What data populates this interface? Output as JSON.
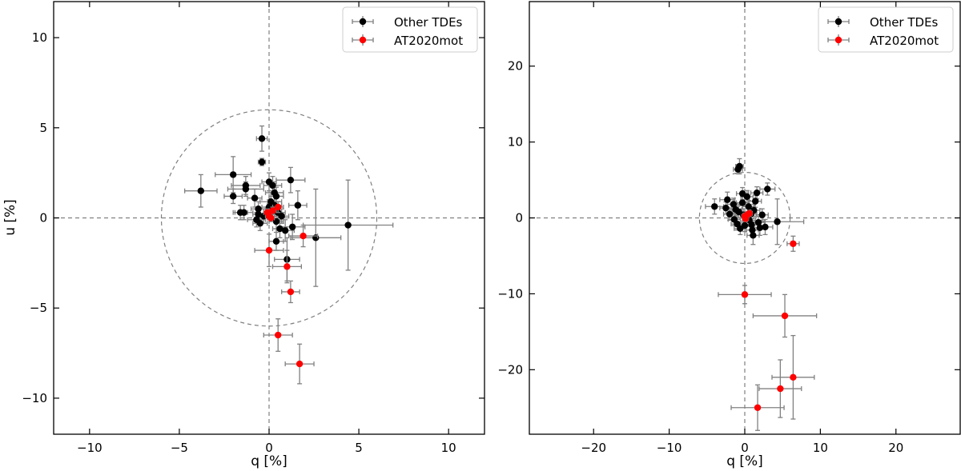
{
  "chart_data": [
    {
      "type": "scatter",
      "xlabel": "q  [%]",
      "ylabel": "u  [%]",
      "xlim": [
        -12,
        12
      ],
      "ylim": [
        -12,
        12
      ],
      "xticks": [
        -10,
        -5,
        0,
        5,
        10
      ],
      "yticks": [
        -10,
        -5,
        0,
        5,
        10
      ],
      "xtick_labels": [
        "−10",
        "−5",
        "0",
        "5",
        "10"
      ],
      "ytick_labels": [
        "−10",
        "−5",
        "0",
        "5",
        "10"
      ],
      "circle_radius": 6,
      "legend_position": "upper right",
      "series": [
        {
          "name": "Other TDEs",
          "color": "#000000",
          "points": [
            {
              "x": -0.4,
              "y": 4.4,
              "xerr": 0.3,
              "yerr": 0.7
            },
            {
              "x": -0.4,
              "y": 3.1,
              "xerr": 0.2,
              "yerr": 0.2
            },
            {
              "x": -2.0,
              "y": 2.4,
              "xerr": 1.0,
              "yerr": 1.0
            },
            {
              "x": -1.3,
              "y": 1.8,
              "xerr": 0.8,
              "yerr": 0.5
            },
            {
              "x": -1.3,
              "y": 1.6,
              "xerr": 1.0,
              "yerr": 0.4
            },
            {
              "x": -2.0,
              "y": 1.2,
              "xerr": 0.5,
              "yerr": 0.4
            },
            {
              "x": -3.8,
              "y": 1.5,
              "xerr": 0.9,
              "yerr": 0.9
            },
            {
              "x": -1.6,
              "y": 0.3,
              "xerr": 0.4,
              "yerr": 0.4
            },
            {
              "x": -1.4,
              "y": 0.3,
              "xerr": 0.5,
              "yerr": 0.4
            },
            {
              "x": -0.8,
              "y": 1.1,
              "xerr": 0.4,
              "yerr": 0.5
            },
            {
              "x": -0.6,
              "y": 0.5,
              "xerr": 0.4,
              "yerr": 0.4
            },
            {
              "x": -0.6,
              "y": 0.2,
              "xerr": 0.3,
              "yerr": 0.3
            },
            {
              "x": -0.7,
              "y": -0.1,
              "xerr": 0.5,
              "yerr": 0.4
            },
            {
              "x": -0.5,
              "y": -0.3,
              "xerr": 0.4,
              "yerr": 0.4
            },
            {
              "x": -0.3,
              "y": 0.1,
              "xerr": 0.4,
              "yerr": 0.4
            },
            {
              "x": 0.0,
              "y": 2.0,
              "xerr": 0.4,
              "yerr": 0.5
            },
            {
              "x": 0.2,
              "y": 1.8,
              "xerr": 0.5,
              "yerr": 0.5
            },
            {
              "x": 0.3,
              "y": 1.4,
              "xerr": 0.5,
              "yerr": 0.5
            },
            {
              "x": 0.4,
              "y": 1.2,
              "xerr": 0.4,
              "yerr": 0.5
            },
            {
              "x": 0.1,
              "y": 0.9,
              "xerr": 0.6,
              "yerr": 0.5
            },
            {
              "x": 0.3,
              "y": 0.7,
              "xerr": 0.4,
              "yerr": 0.5
            },
            {
              "x": 0.0,
              "y": 0.6,
              "xerr": 0.4,
              "yerr": 0.4
            },
            {
              "x": 0.2,
              "y": 0.4,
              "xerr": 0.3,
              "yerr": 0.4
            },
            {
              "x": 0.5,
              "y": 0.3,
              "xerr": 0.4,
              "yerr": 0.4
            },
            {
              "x": 0.7,
              "y": 0.1,
              "xerr": 0.4,
              "yerr": 0.4
            },
            {
              "x": 0.4,
              "y": -0.2,
              "xerr": 0.4,
              "yerr": 0.4
            },
            {
              "x": 0.6,
              "y": -0.6,
              "xerr": 0.4,
              "yerr": 0.5
            },
            {
              "x": 0.4,
              "y": -1.3,
              "xerr": 0.4,
              "yerr": 0.5
            },
            {
              "x": 0.9,
              "y": -0.7,
              "xerr": 0.5,
              "yerr": 0.6
            },
            {
              "x": 1.2,
              "y": 2.1,
              "xerr": 0.8,
              "yerr": 0.7
            },
            {
              "x": 1.6,
              "y": 0.7,
              "xerr": 0.5,
              "yerr": 0.8
            },
            {
              "x": 1.3,
              "y": -0.5,
              "xerr": 0.7,
              "yerr": 0.7
            },
            {
              "x": 1.0,
              "y": -2.3,
              "xerr": 0.7,
              "yerr": 1.2
            },
            {
              "x": 2.6,
              "y": -1.1,
              "xerr": 1.4,
              "yerr": 2.7
            },
            {
              "x": 4.4,
              "y": -0.4,
              "xerr": 2.5,
              "yerr": 2.5
            }
          ]
        },
        {
          "name": "AT2020mot",
          "color": "#ff0000",
          "points": [
            {
              "x": 0.0,
              "y": 0.1,
              "xerr": 0.2,
              "yerr": 0.2
            },
            {
              "x": -0.1,
              "y": 0.3,
              "xerr": 0.2,
              "yerr": 0.2
            },
            {
              "x": 0.1,
              "y": 0.0,
              "xerr": 0.2,
              "yerr": 0.2
            },
            {
              "x": 0.2,
              "y": 0.4,
              "xerr": 0.2,
              "yerr": 0.2
            },
            {
              "x": 0.5,
              "y": 0.6,
              "xerr": 0.3,
              "yerr": 0.3
            },
            {
              "x": 1.9,
              "y": -1.0,
              "xerr": 0.8,
              "yerr": 0.6
            },
            {
              "x": 0.0,
              "y": -1.8,
              "xerr": 0.8,
              "yerr": 0.9
            },
            {
              "x": 1.0,
              "y": -2.7,
              "xerr": 0.8,
              "yerr": 0.9
            },
            {
              "x": 1.2,
              "y": -4.1,
              "xerr": 0.5,
              "yerr": 0.6
            },
            {
              "x": 0.5,
              "y": -6.5,
              "xerr": 0.8,
              "yerr": 0.9
            },
            {
              "x": 1.7,
              "y": -8.1,
              "xerr": 0.8,
              "yerr": 1.1
            }
          ]
        }
      ]
    },
    {
      "type": "scatter",
      "xlabel": "q  [%]",
      "ylabel": "",
      "xlim": [
        -28.5,
        28.5
      ],
      "ylim": [
        -28.5,
        28.5
      ],
      "xticks": [
        -20,
        -10,
        0,
        10,
        20
      ],
      "yticks": [
        -20,
        -10,
        0,
        10,
        20
      ],
      "xtick_labels": [
        "−20",
        "−10",
        "0",
        "10",
        "20"
      ],
      "ytick_labels": [
        "−20",
        "−10",
        "0",
        "10",
        "20"
      ],
      "circle_radius": 6,
      "legend_position": "upper right",
      "series": [
        {
          "name": "Other TDEs",
          "color": "#000000",
          "points": [
            {
              "x": -0.7,
              "y": 6.8,
              "xerr": 0.5,
              "yerr": 1.0
            },
            {
              "x": -0.9,
              "y": 6.4,
              "xerr": 0.6,
              "yerr": 0.6
            },
            {
              "x": -4.0,
              "y": 1.5,
              "xerr": 1.2,
              "yerr": 1.0
            },
            {
              "x": -2.3,
              "y": 2.4,
              "xerr": 1.0,
              "yerr": 1.0
            },
            {
              "x": -2.5,
              "y": 1.3,
              "xerr": 0.8,
              "yerr": 0.8
            },
            {
              "x": -2.0,
              "y": 0.5,
              "xerr": 0.8,
              "yerr": 0.8
            },
            {
              "x": -1.5,
              "y": 1.8,
              "xerr": 0.8,
              "yerr": 0.8
            },
            {
              "x": -1.4,
              "y": -0.2,
              "xerr": 0.8,
              "yerr": 0.8
            },
            {
              "x": -1.0,
              "y": -0.8,
              "xerr": 0.8,
              "yerr": 0.8
            },
            {
              "x": -0.8,
              "y": 0.8,
              "xerr": 0.8,
              "yerr": 0.8
            },
            {
              "x": -0.6,
              "y": -1.4,
              "xerr": 0.8,
              "yerr": 0.8
            },
            {
              "x": -0.3,
              "y": 3.2,
              "xerr": 0.8,
              "yerr": 0.8
            },
            {
              "x": -0.3,
              "y": 2.0,
              "xerr": 0.8,
              "yerr": 0.8
            },
            {
              "x": -0.2,
              "y": 0.4,
              "xerr": 0.8,
              "yerr": 0.8
            },
            {
              "x": 0.3,
              "y": 2.8,
              "xerr": 0.8,
              "yerr": 0.8
            },
            {
              "x": 0.5,
              "y": 1.5,
              "xerr": 0.8,
              "yerr": 0.8
            },
            {
              "x": 0.6,
              "y": -0.3,
              "xerr": 0.8,
              "yerr": 0.8
            },
            {
              "x": 0.9,
              "y": -0.9,
              "xerr": 0.8,
              "yerr": 0.8
            },
            {
              "x": 1.2,
              "y": 1.0,
              "xerr": 0.8,
              "yerr": 0.8
            },
            {
              "x": 1.4,
              "y": 2.2,
              "xerr": 0.8,
              "yerr": 0.8
            },
            {
              "x": 1.6,
              "y": 3.3,
              "xerr": 0.8,
              "yerr": 0.8
            },
            {
              "x": 1.8,
              "y": -0.6,
              "xerr": 0.8,
              "yerr": 0.8
            },
            {
              "x": 2.0,
              "y": -1.3,
              "xerr": 0.8,
              "yerr": 1.0
            },
            {
              "x": 1.0,
              "y": -1.6,
              "xerr": 0.8,
              "yerr": 0.8
            },
            {
              "x": 0.0,
              "y": -1.0,
              "xerr": 0.8,
              "yerr": 0.8
            },
            {
              "x": 2.7,
              "y": -1.2,
              "xerr": 1.0,
              "yerr": 1.0
            },
            {
              "x": 3.0,
              "y": 3.8,
              "xerr": 1.0,
              "yerr": 0.8
            },
            {
              "x": 0.8,
              "y": 0.5,
              "xerr": 0.8,
              "yerr": 0.8
            },
            {
              "x": -1.2,
              "y": 1.1,
              "xerr": 0.8,
              "yerr": 0.8
            },
            {
              "x": 2.3,
              "y": 0.4,
              "xerr": 0.8,
              "yerr": 0.8
            },
            {
              "x": 1.1,
              "y": -2.3,
              "xerr": 0.8,
              "yerr": 1.2
            },
            {
              "x": 4.3,
              "y": -0.5,
              "xerr": 3.5,
              "yerr": 3.0
            }
          ]
        },
        {
          "name": "AT2020mot",
          "color": "#ff0000",
          "points": [
            {
              "x": 0.0,
              "y": 0.2,
              "xerr": 0.4,
              "yerr": 0.4
            },
            {
              "x": 0.3,
              "y": 0.4,
              "xerr": 0.4,
              "yerr": 0.4
            },
            {
              "x": 0.6,
              "y": 0.6,
              "xerr": 0.4,
              "yerr": 0.4
            },
            {
              "x": 0.1,
              "y": -0.1,
              "xerr": 0.4,
              "yerr": 0.4
            },
            {
              "x": 6.4,
              "y": -3.4,
              "xerr": 0.8,
              "yerr": 1.0
            },
            {
              "x": 0.0,
              "y": -10.1,
              "xerr": 3.5,
              "yerr": 1.2
            },
            {
              "x": 5.3,
              "y": -12.9,
              "xerr": 4.2,
              "yerr": 2.8
            },
            {
              "x": 6.4,
              "y": -21.0,
              "xerr": 2.8,
              "yerr": 5.5
            },
            {
              "x": 4.7,
              "y": -22.5,
              "xerr": 2.8,
              "yerr": 3.8
            },
            {
              "x": 1.7,
              "y": -25.0,
              "xerr": 3.5,
              "yerr": 3.0
            }
          ]
        }
      ]
    }
  ]
}
